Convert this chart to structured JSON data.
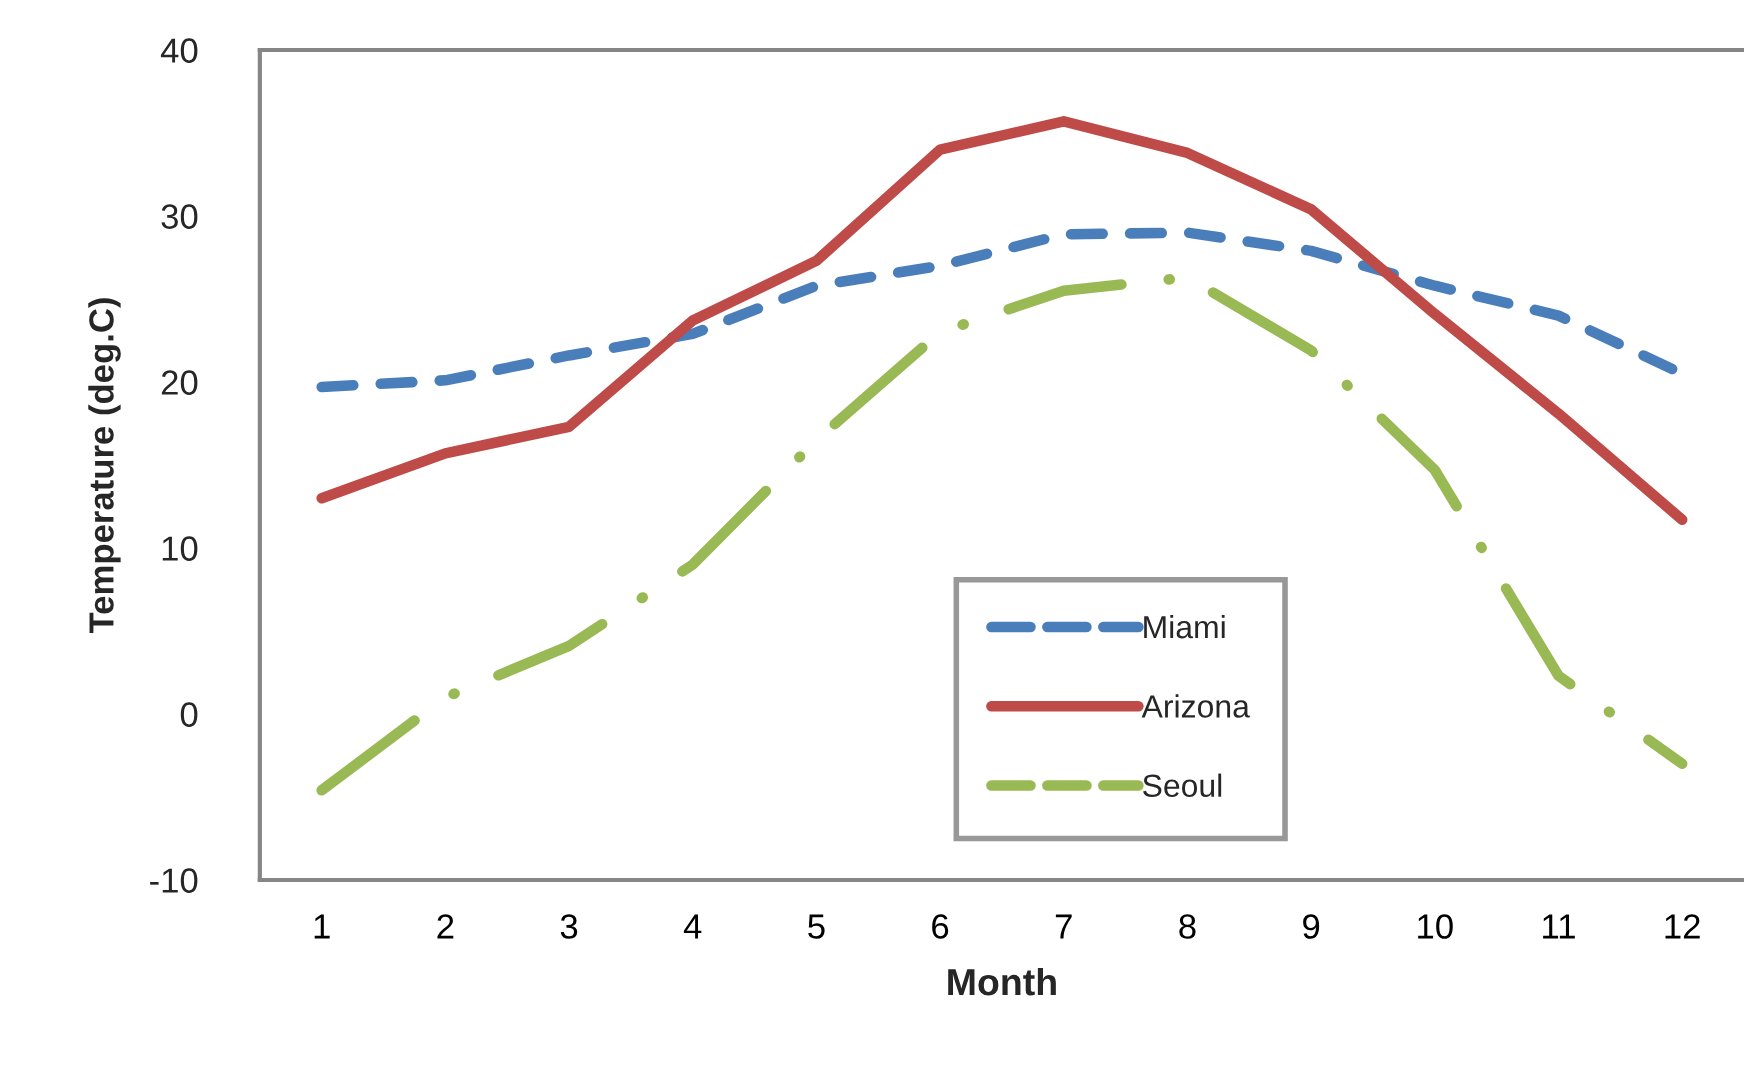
{
  "chart_data": {
    "type": "line",
    "xlabel": "Month",
    "ylabel": "Temperature (deg.C)",
    "categories": [
      "1",
      "2",
      "3",
      "4",
      "5",
      "6",
      "7",
      "8",
      "9",
      "10",
      "11",
      "12"
    ],
    "ylim": [
      -10,
      40
    ],
    "yticks": [
      -10,
      0,
      10,
      20,
      30,
      40
    ],
    "grid": false,
    "legend": "bottom",
    "marker": "none",
    "series": [
      {
        "name": "Miami",
        "color": "#4a7ebb",
        "line_style": "dashed",
        "values": [
          19.7,
          20.1,
          21.6,
          22.9,
          25.8,
          27.0,
          28.9,
          29.0,
          27.9,
          25.8,
          24.0,
          20.5
        ]
      },
      {
        "name": "Arizona",
        "color": "#be4b48",
        "line_style": "solid",
        "values": [
          13.0,
          15.7,
          17.3,
          23.7,
          27.3,
          34.0,
          35.7,
          33.8,
          30.4,
          24.1,
          18.1,
          11.7
        ]
      },
      {
        "name": "Seoul",
        "color": "#98b954",
        "line_style": "dashdot",
        "values": [
          -4.6,
          1.0,
          4.1,
          9.0,
          16.5,
          23.0,
          25.5,
          26.3,
          21.9,
          14.7,
          2.3,
          -3.0
        ]
      }
    ]
  }
}
